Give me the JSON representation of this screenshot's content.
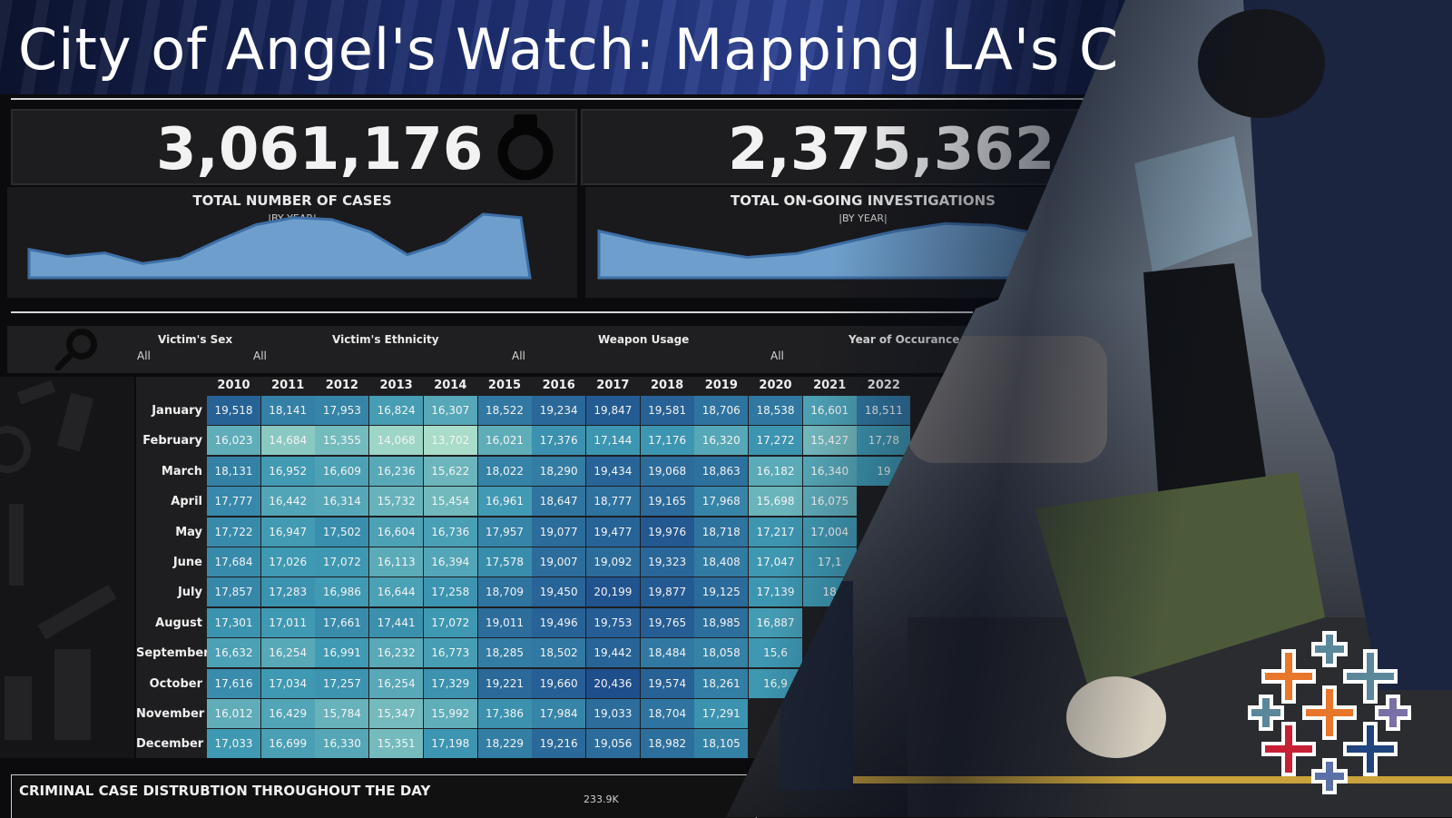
{
  "title": "City of Angel's Watch: Mapping LA's C",
  "kpis": [
    {
      "value": "3,061,176",
      "label": "TOTAL NUMBER OF CASES",
      "sublabel": "|BY YEAR|"
    },
    {
      "value": "2,375,362",
      "label": "TOTAL ON-GOING INVESTIGATIONS",
      "sublabel": "|BY YEAR|"
    }
  ],
  "filters": [
    {
      "label": "Victim's Sex",
      "value": "All"
    },
    {
      "label": "Victim's Ethnicity",
      "value": "All"
    },
    {
      "label": "Weapon Usage",
      "value": "All"
    },
    {
      "label": "Year of Occurance",
      "value": "All"
    }
  ],
  "extra_filter_value": "All",
  "heatmap": {
    "years": [
      "2010",
      "2011",
      "2012",
      "2013",
      "2014",
      "2015",
      "2016",
      "2017",
      "2018",
      "2019",
      "2020",
      "2021",
      "2022"
    ],
    "months": [
      "January",
      "February",
      "March",
      "April",
      "May",
      "June",
      "July",
      "August",
      "September",
      "October",
      "November",
      "December"
    ],
    "rows": [
      [
        "19,518",
        "18,141",
        "17,953",
        "16,824",
        "16,307",
        "18,522",
        "19,234",
        "19,847",
        "19,581",
        "18,706",
        "18,538",
        "16,601",
        "18,511"
      ],
      [
        "16,023",
        "14,684",
        "15,355",
        "14,068",
        "13,702",
        "16,021",
        "17,376",
        "17,144",
        "17,176",
        "16,320",
        "17,272",
        "15,427",
        "17,78"
      ],
      [
        "18,131",
        "16,952",
        "16,609",
        "16,236",
        "15,622",
        "18,022",
        "18,290",
        "19,434",
        "19,068",
        "18,863",
        "16,182",
        "16,340",
        "19"
      ],
      [
        "17,777",
        "16,442",
        "16,314",
        "15,732",
        "15,454",
        "16,961",
        "18,647",
        "18,777",
        "19,165",
        "17,968",
        "15,698",
        "16,075",
        ""
      ],
      [
        "17,722",
        "16,947",
        "17,502",
        "16,604",
        "16,736",
        "17,957",
        "19,077",
        "19,477",
        "19,976",
        "18,718",
        "17,217",
        "17,004",
        ""
      ],
      [
        "17,684",
        "17,026",
        "17,072",
        "16,113",
        "16,394",
        "17,578",
        "19,007",
        "19,092",
        "19,323",
        "18,408",
        "17,047",
        "17,1",
        ""
      ],
      [
        "17,857",
        "17,283",
        "16,986",
        "16,644",
        "17,258",
        "18,709",
        "19,450",
        "20,199",
        "19,877",
        "19,125",
        "17,139",
        "18",
        ""
      ],
      [
        "17,301",
        "17,011",
        "17,661",
        "17,441",
        "17,072",
        "19,011",
        "19,496",
        "19,753",
        "19,765",
        "18,985",
        "16,887",
        "",
        ""
      ],
      [
        "16,632",
        "16,254",
        "16,991",
        "16,232",
        "16,773",
        "18,285",
        "18,502",
        "19,442",
        "18,484",
        "18,058",
        "15,6",
        "",
        ""
      ],
      [
        "17,616",
        "17,034",
        "17,257",
        "16,254",
        "17,329",
        "19,221",
        "19,660",
        "20,436",
        "19,574",
        "18,261",
        "16,9",
        "",
        ""
      ],
      [
        "16,012",
        "16,429",
        "15,784",
        "15,347",
        "15,992",
        "17,386",
        "17,984",
        "19,033",
        "18,704",
        "17,291",
        "",
        "",
        ""
      ],
      [
        "17,033",
        "16,699",
        "16,330",
        "15,351",
        "17,198",
        "18,229",
        "19,216",
        "19,056",
        "18,982",
        "18,105",
        "",
        "",
        ""
      ]
    ]
  },
  "bottom": {
    "title": "CRIMINAL CASE DISTRUBTION THROUGHOUT THE DAY",
    "value": "233.9K"
  },
  "chart_data": [
    {
      "type": "area",
      "title": "TOTAL NUMBER OF CASES",
      "x": [
        "2010",
        "2011",
        "2012",
        "2013",
        "2014",
        "2015",
        "2016",
        "2017",
        "2018",
        "2019",
        "2020",
        "2021",
        "2022",
        "2023"
      ],
      "values": [
        218,
        214,
        216,
        210,
        213,
        223,
        232,
        236,
        235,
        228,
        215,
        222,
        238,
        236
      ]
    },
    {
      "type": "area",
      "title": "TOTAL ON-GOING INVESTIGATIONS",
      "x": [
        "2010",
        "2011",
        "2012",
        "2013",
        "2014",
        "2015",
        "2016",
        "2017",
        "2018",
        "2019",
        "2020"
      ],
      "values": [
        182,
        176,
        172,
        168,
        170,
        176,
        182,
        186,
        185,
        180,
        170
      ]
    }
  ],
  "colors": {
    "heat_low": "#a9dcc9",
    "heat_high": "#1f4e8c",
    "area_fill": "#6e9fcc",
    "area_stroke": "#3e6fa6"
  },
  "icons": [
    "handcuffs-icon",
    "search-icon",
    "tableau-logo"
  ]
}
